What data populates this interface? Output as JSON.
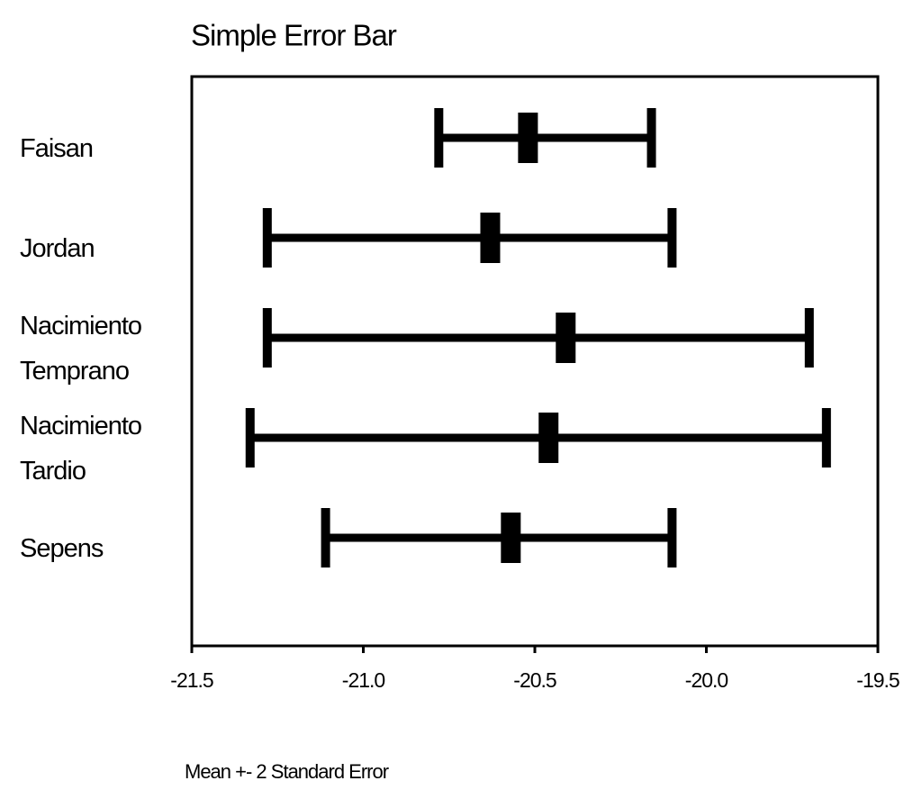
{
  "chart_data": {
    "type": "errorbar",
    "title": "Simple Error Bar",
    "x_label": "Mean +- 2 Standard Error",
    "categories": [
      "Faisan",
      "Jordan",
      "Nacimiento\nTemprano",
      "Nacimiento\nTardio",
      "Sepens"
    ],
    "values": [
      -20.52,
      -20.63,
      -20.41,
      -20.46,
      -20.57
    ],
    "lower": [
      -20.78,
      -21.28,
      -21.28,
      -21.33,
      -21.11
    ],
    "upper": [
      -20.16,
      -20.1,
      -19.7,
      -19.65,
      -20.1
    ],
    "color": "#000000",
    "xlim": [
      -21.5,
      -19.5
    ],
    "xticks": [
      -21.5,
      {
        "value": -21,
        "label": "-21.0"
      },
      -20.5,
      {
        "value": -20,
        "label": "-20.0"
      },
      -19.5
    ]
  }
}
